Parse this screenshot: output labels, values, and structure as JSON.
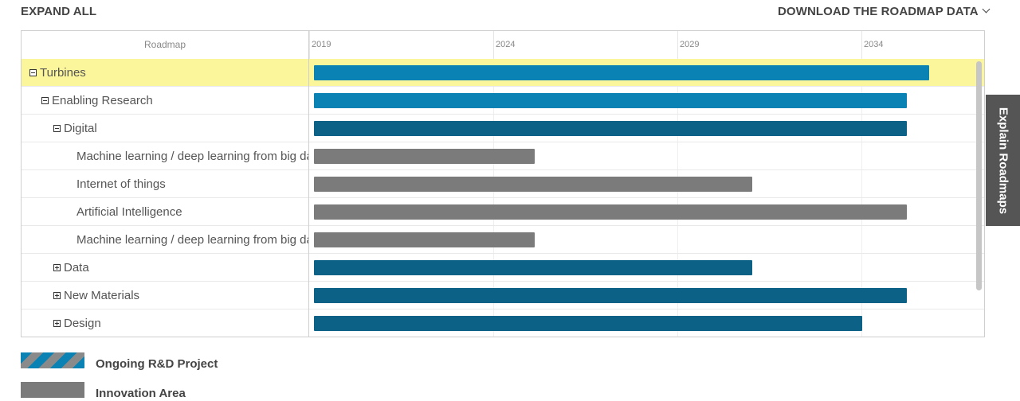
{
  "toolbar": {
    "expand_all": "EXPAND ALL",
    "download": "DOWNLOAD THE ROADMAP DATA"
  },
  "gantt": {
    "column_header": "Roadmap",
    "ticks": [
      "2019",
      "2024",
      "2029",
      "2034"
    ],
    "rows": [
      {
        "label": "Turbines",
        "indent": 0,
        "toggle": "minus",
        "selected": true,
        "bar_color": "light",
        "start": 2019,
        "end": 2035.7
      },
      {
        "label": "Enabling Research",
        "indent": 1,
        "toggle": "minus",
        "selected": false,
        "bar_color": "light",
        "start": 2019,
        "end": 2035.1
      },
      {
        "label": "Digital",
        "indent": 2,
        "toggle": "minus",
        "selected": false,
        "bar_color": "dark",
        "start": 2019,
        "end": 2035.1
      },
      {
        "label": "Machine learning / deep learning from big data",
        "indent": 3,
        "toggle": "none",
        "selected": false,
        "bar_color": "gray",
        "start": 2019,
        "end": 2025.0
      },
      {
        "label": "Internet of things",
        "indent": 3,
        "toggle": "none",
        "selected": false,
        "bar_color": "gray",
        "start": 2019,
        "end": 2030.9
      },
      {
        "label": "Artificial Intelligence",
        "indent": 3,
        "toggle": "none",
        "selected": false,
        "bar_color": "gray",
        "start": 2019,
        "end": 2035.1
      },
      {
        "label": "Machine learning / deep learning from big data",
        "indent": 3,
        "toggle": "none",
        "selected": false,
        "bar_color": "gray",
        "start": 2019,
        "end": 2025.0
      },
      {
        "label": "Data",
        "indent": 2,
        "toggle": "plus",
        "selected": false,
        "bar_color": "dark",
        "start": 2019,
        "end": 2030.9
      },
      {
        "label": "New Materials",
        "indent": 2,
        "toggle": "plus",
        "selected": false,
        "bar_color": "dark",
        "start": 2019,
        "end": 2035.1
      },
      {
        "label": "Design",
        "indent": 2,
        "toggle": "plus",
        "selected": false,
        "bar_color": "dark",
        "start": 2019,
        "end": 2033.9
      }
    ]
  },
  "side_tab": "Explain Roadmaps",
  "legend": [
    {
      "label": "Ongoing R&D Project"
    },
    {
      "label": "Innovation Area"
    }
  ]
}
